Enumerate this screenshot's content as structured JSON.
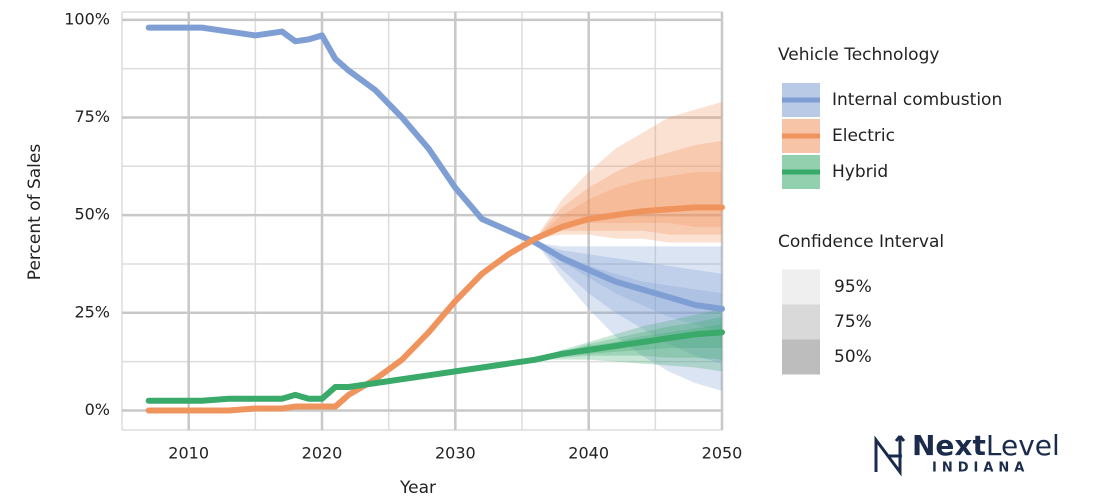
{
  "chart_data": {
    "type": "line",
    "x_label": "Year",
    "y_label": "Percent of Sales",
    "xlim": [
      2005,
      2050
    ],
    "ylim": [
      -5,
      102
    ],
    "xticks": [
      2010,
      2020,
      2030,
      2040,
      2050
    ],
    "yticks": [
      {
        "value": 0,
        "label": "0%"
      },
      {
        "value": 25,
        "label": "25%"
      },
      {
        "value": 50,
        "label": "50%"
      },
      {
        "value": 75,
        "label": "75%"
      },
      {
        "value": 100,
        "label": "100%"
      }
    ],
    "x_minor_ticks": [
      2005,
      2015,
      2025,
      2035,
      2045
    ],
    "y_minor_ticks": [
      12.5,
      37.5,
      62.5,
      87.5
    ],
    "grid": true,
    "legend_title": "Vehicle Technology",
    "x": [
      2007,
      2009,
      2011,
      2013,
      2015,
      2017,
      2018,
      2019,
      2020,
      2021,
      2022,
      2024,
      2026,
      2028,
      2030,
      2032,
      2034,
      2036,
      2038,
      2040,
      2042,
      2044,
      2046,
      2048,
      2050
    ],
    "band_x": [
      2036,
      2038,
      2040,
      2042,
      2044,
      2046,
      2048,
      2050
    ],
    "confidence_title": "Confidence Interval",
    "confidence_levels": [
      "95%",
      "75%",
      "50%"
    ],
    "series": [
      {
        "name": "Internal combustion",
        "color": "#7f9fd4",
        "values": [
          98,
          98,
          98,
          97,
          96,
          97,
          94.5,
          95,
          96,
          90,
          87,
          82,
          75,
          67,
          57,
          49,
          46,
          43,
          39,
          36,
          33,
          31,
          29,
          27,
          26
        ],
        "bands": [
          {
            "upper": [
              43,
              42,
              42,
              42,
              42,
              42,
              42,
              42
            ],
            "lower": [
              43,
              34,
              26,
              19,
              14,
              10,
              7,
              5
            ]
          },
          {
            "upper": [
              43,
              41,
              40,
              39,
              38,
              37,
              36,
              35
            ],
            "lower": [
              43,
              36,
              30,
              25,
              21,
              17,
              14,
              12
            ]
          },
          {
            "upper": [
              43,
              40,
              37,
              35,
              33,
              32,
              31,
              30
            ],
            "lower": [
              43,
              38,
              34,
              30,
              27,
              24,
              22,
              20
            ]
          }
        ]
      },
      {
        "name": "Electric",
        "color": "#f0945e",
        "values": [
          0,
          0,
          0,
          0,
          0.5,
          0.5,
          1,
          1,
          1,
          1,
          4,
          8,
          13,
          20,
          28,
          35,
          40,
          44,
          47,
          49,
          50,
          51,
          51.5,
          52,
          52
        ],
        "bands": [
          {
            "upper": [
              44,
              54,
              61,
              67,
              71,
              75,
              77,
              79
            ],
            "lower": [
              44,
              45,
              45,
              44,
              44,
              43,
              43,
              43
            ]
          },
          {
            "upper": [
              44,
              52,
              57,
              61,
              64,
              66,
              68,
              69
            ],
            "lower": [
              44,
              46,
              46,
              46,
              46,
              45,
              45,
              45
            ]
          },
          {
            "upper": [
              44,
              50,
              54,
              57,
              59,
              60,
              61,
              61
            ],
            "lower": [
              44,
              47,
              48,
              48,
              48,
              48,
              47,
              47
            ]
          }
        ]
      },
      {
        "name": "Hybrid",
        "color": "#3aaa6a",
        "values": [
          2.5,
          2.5,
          2.5,
          3,
          3,
          3,
          4,
          3,
          3,
          6,
          6,
          7,
          8,
          9,
          10,
          11,
          12,
          13,
          14.5,
          15.5,
          16.5,
          17.5,
          18.5,
          19.5,
          20
        ],
        "bands": [
          {
            "upper": [
              13,
              15.5,
              17.5,
              19.5,
              21.5,
              23,
              24.5,
              26
            ],
            "lower": [
              13,
              13,
              13,
              12.5,
              12,
              11.5,
              11,
              10
            ]
          },
          {
            "upper": [
              13,
              15,
              17,
              18.5,
              20,
              21.5,
              22.5,
              24
            ],
            "lower": [
              13,
              13.5,
              14,
              14,
              14,
              13.5,
              13.5,
              13
            ]
          },
          {
            "upper": [
              13,
              15,
              16.5,
              17.5,
              19,
              20,
              21,
              22
            ],
            "lower": [
              13,
              14,
              14.5,
              15,
              15.5,
              16,
              16,
              16
            ]
          }
        ]
      }
    ]
  },
  "logo": {
    "word1": "Next",
    "word2": "Level",
    "sub": "INDIANA"
  }
}
